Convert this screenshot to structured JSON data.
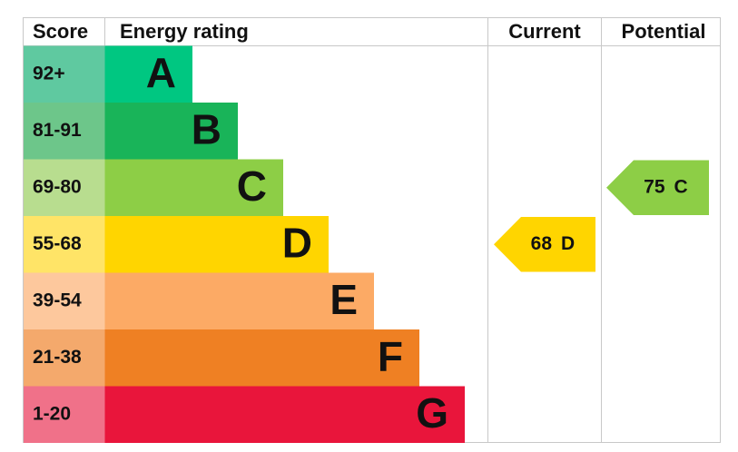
{
  "header": {
    "score": "Score",
    "rating": "Energy rating",
    "current": "Current",
    "potential": "Potential"
  },
  "bands": [
    {
      "range": "92+",
      "letter": "A",
      "color": "#00c781",
      "score_color": "#5fc9a0"
    },
    {
      "range": "81-91",
      "letter": "B",
      "color": "#19b459",
      "score_color": "#6dc68a"
    },
    {
      "range": "69-80",
      "letter": "C",
      "color": "#8dce46",
      "score_color": "#b8dd8f"
    },
    {
      "range": "55-68",
      "letter": "D",
      "color": "#ffd500",
      "score_color": "#ffe467"
    },
    {
      "range": "39-54",
      "letter": "E",
      "color": "#fcaa65",
      "score_color": "#fdc89d"
    },
    {
      "range": "21-38",
      "letter": "F",
      "color": "#ef8023",
      "score_color": "#f4a96c"
    },
    {
      "range": "1-20",
      "letter": "G",
      "color": "#e9153b",
      "score_color": "#f07189"
    }
  ],
  "current": {
    "score": 68,
    "band": "D"
  },
  "potential": {
    "score": 75,
    "band": "C"
  }
}
